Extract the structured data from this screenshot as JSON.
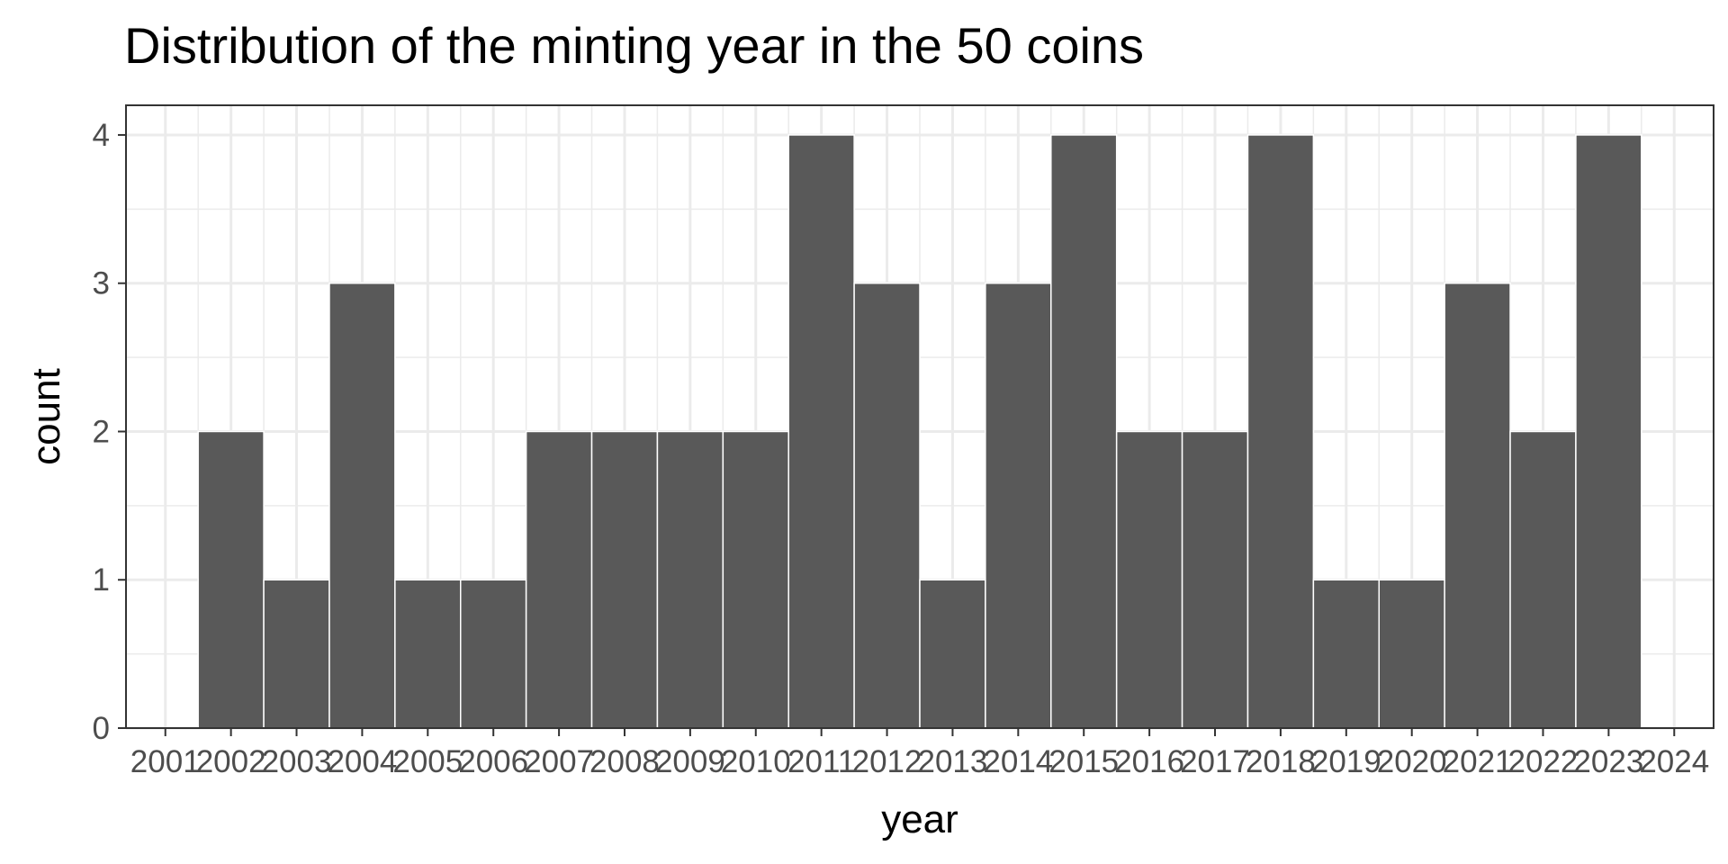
{
  "chart_data": {
    "type": "bar",
    "title": "Distribution of the minting year in the 50 coins",
    "xlabel": "year",
    "ylabel": "count",
    "x_ticks": [
      "2001",
      "2002",
      "2003",
      "2004",
      "2005",
      "2006",
      "2007",
      "2008",
      "2009",
      "2010",
      "2011",
      "2012",
      "2013",
      "2014",
      "2015",
      "2016",
      "2017",
      "2018",
      "2019",
      "2020",
      "2021",
      "2022",
      "2023",
      "2024"
    ],
    "y_ticks": [
      0,
      1,
      2,
      3,
      4
    ],
    "categories": [
      "2002",
      "2003",
      "2004",
      "2005",
      "2006",
      "2007",
      "2008",
      "2009",
      "2010",
      "2011",
      "2012",
      "2013",
      "2014",
      "2015",
      "2016",
      "2017",
      "2018",
      "2019",
      "2020",
      "2021",
      "2022",
      "2023"
    ],
    "values": [
      2,
      1,
      3,
      1,
      1,
      2,
      2,
      2,
      2,
      4,
      3,
      1,
      3,
      4,
      2,
      2,
      4,
      1,
      1,
      3,
      2,
      4
    ],
    "xlim": [
      2000.4,
      2024.6
    ],
    "ylim": [
      0,
      4.2
    ],
    "grid": true,
    "colors": {
      "bar": "#595959",
      "bar_edge": "#ffffff",
      "grid": "#ebebeb",
      "panel_border": "#333333",
      "tick_text": "#4d4d4d"
    }
  }
}
